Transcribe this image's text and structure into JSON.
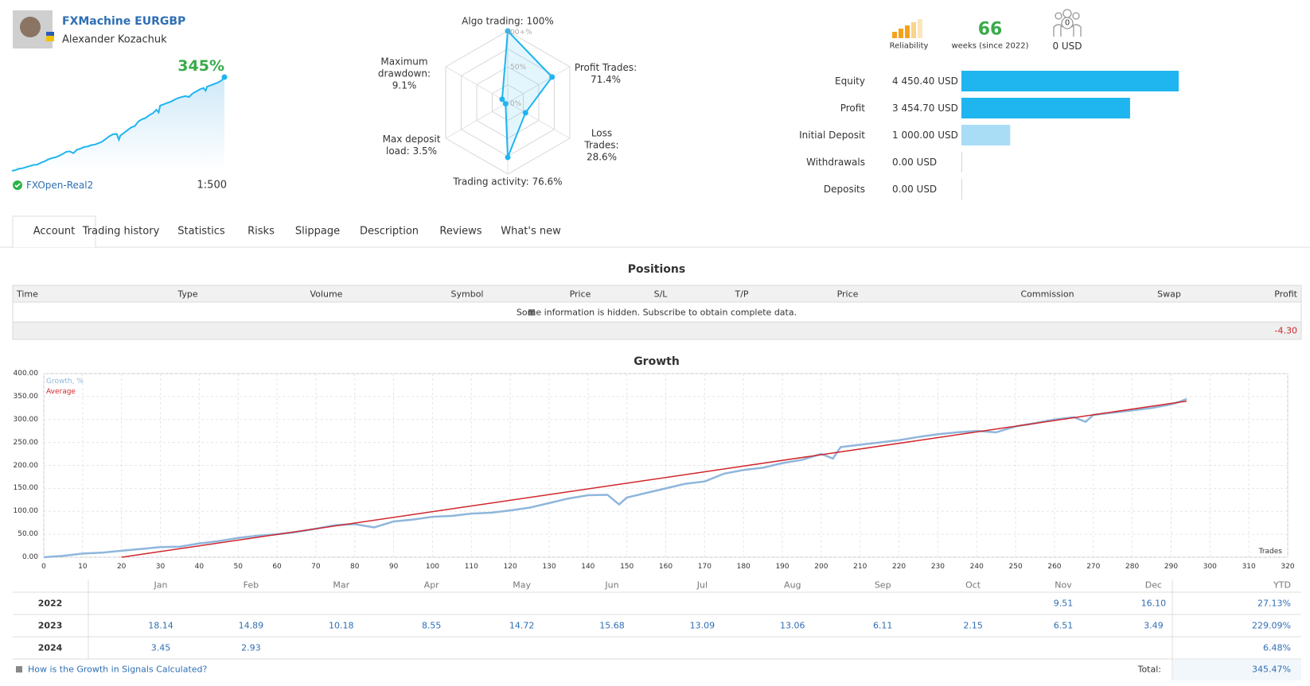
{
  "header": {
    "title": "FXMachine EURGBP",
    "author": "Alexander Kozachuk",
    "growth": "345%",
    "broker": "FXOpen-Real2",
    "leverage": "1:500"
  },
  "radar": {
    "labels": [
      "Algo trading: 100%",
      "Profit Trades: 71.4%",
      "Loss Trades: 28.6%",
      "Trading activity: 76.6%",
      "Max deposit load: 3.5%",
      "Maximum drawdown: 9.1%"
    ],
    "values": [
      100,
      71.4,
      28.6,
      76.6,
      3.5,
      9.1
    ],
    "scale_labels": [
      "100+%",
      "50%",
      "0%"
    ],
    "color": "#1fb5ef"
  },
  "stats": {
    "reliability": "Reliability",
    "weeks": "66",
    "weeks_label": "weeks (since 2022)",
    "subscribers": "0",
    "subscribers_funds": "0 USD"
  },
  "balances": {
    "labels": [
      "Equity",
      "Profit",
      "Initial Deposit",
      "Withdrawals",
      "Deposits"
    ],
    "values": [
      4450.4,
      3454.7,
      1000,
      0,
      0
    ],
    "value_labels": [
      "4 450.40 USD",
      "3 454.70 USD",
      "1 000.00 USD",
      "0.00 USD",
      "0.00 USD"
    ],
    "colors": [
      "#1fb5ef",
      "#1fb5ef",
      "#a9ddf6",
      "#cfd8dc",
      "#cfd8dc"
    ]
  },
  "tabs": [
    "Account",
    "Trading history",
    "Statistics",
    "Risks",
    "Slippage",
    "Description",
    "Reviews",
    "What's new"
  ],
  "positions": {
    "title": "Positions",
    "columns": [
      "Time",
      "Type",
      "Volume",
      "Symbol",
      "Price",
      "S/L",
      "T/P",
      "Price",
      "Commission",
      "Swap",
      "Profit"
    ],
    "notice": "Some information is hidden. Subscribe to obtain complete data.",
    "total": "-4.30"
  },
  "growth_chart": {
    "type": "line",
    "title": "Growth",
    "x_label": "Trades",
    "xlim": [
      0,
      320
    ],
    "xticks": [
      0,
      10,
      20,
      30,
      40,
      50,
      60,
      70,
      80,
      90,
      100,
      110,
      120,
      130,
      140,
      150,
      160,
      170,
      180,
      190,
      200,
      210,
      220,
      230,
      240,
      250,
      260,
      270,
      280,
      290,
      300,
      310,
      320
    ],
    "ylim": [
      0,
      400
    ],
    "yticks": [
      {
        "value": 0,
        "label": "0.00"
      },
      {
        "value": 50,
        "label": "50.00"
      },
      {
        "value": 100,
        "label": "100.00"
      },
      {
        "value": 150,
        "label": "150.00"
      },
      {
        "value": 200,
        "label": "200.00"
      },
      {
        "value": 250,
        "label": "250.00"
      },
      {
        "value": 300,
        "label": "300.00"
      },
      {
        "value": 350,
        "label": "350.00"
      },
      {
        "value": 400,
        "label": "400.00"
      }
    ],
    "grid": true,
    "series": [
      {
        "name": "Growth, %",
        "color": "#8fb6dc",
        "x": [
          0,
          5,
          10,
          15,
          20,
          25,
          30,
          35,
          40,
          45,
          50,
          55,
          60,
          65,
          70,
          75,
          80,
          85,
          90,
          95,
          100,
          105,
          110,
          115,
          120,
          125,
          130,
          135,
          140,
          145,
          148,
          150,
          155,
          160,
          165,
          170,
          175,
          180,
          185,
          190,
          195,
          200,
          203,
          205,
          210,
          215,
          220,
          225,
          230,
          235,
          240,
          245,
          250,
          255,
          260,
          265,
          268,
          270,
          275,
          280,
          285,
          290,
          292,
          294
        ],
        "values": [
          0,
          3,
          8,
          10,
          14,
          18,
          22,
          23,
          30,
          35,
          42,
          47,
          50,
          55,
          62,
          70,
          72,
          65,
          78,
          82,
          88,
          90,
          95,
          97,
          102,
          108,
          118,
          128,
          135,
          136,
          115,
          130,
          140,
          150,
          160,
          165,
          182,
          190,
          195,
          205,
          212,
          225,
          215,
          240,
          245,
          250,
          255,
          262,
          268,
          272,
          275,
          272,
          285,
          292,
          300,
          305,
          295,
          310,
          315,
          320,
          325,
          333,
          338,
          345
        ]
      },
      {
        "name": "Average",
        "color": "#d0262c",
        "x": [
          20,
          294
        ],
        "values": [
          0,
          340
        ]
      }
    ]
  },
  "monthly": {
    "columns": [
      "Jan",
      "Feb",
      "Mar",
      "Apr",
      "May",
      "Jun",
      "Jul",
      "Aug",
      "Sep",
      "Oct",
      "Nov",
      "Dec",
      "YTD"
    ],
    "rows": [
      {
        "year": "2022",
        "months": [
          null,
          null,
          null,
          null,
          null,
          null,
          null,
          null,
          null,
          null,
          "9.51",
          "16.10"
        ],
        "ytd": "27.13%"
      },
      {
        "year": "2023",
        "months": [
          "18.14",
          "14.89",
          "10.18",
          "8.55",
          "14.72",
          "15.68",
          "13.09",
          "13.06",
          "6.11",
          "2.15",
          "6.51",
          "3.49"
        ],
        "ytd": "229.09%"
      },
      {
        "year": "2024",
        "months": [
          "3.45",
          "2.93",
          null,
          null,
          null,
          null,
          null,
          null,
          null,
          null,
          null,
          null
        ],
        "ytd": "6.48%"
      }
    ],
    "link": "How is the Growth in Signals Calculated?",
    "total_label": "Total:",
    "total": "345.47%"
  }
}
